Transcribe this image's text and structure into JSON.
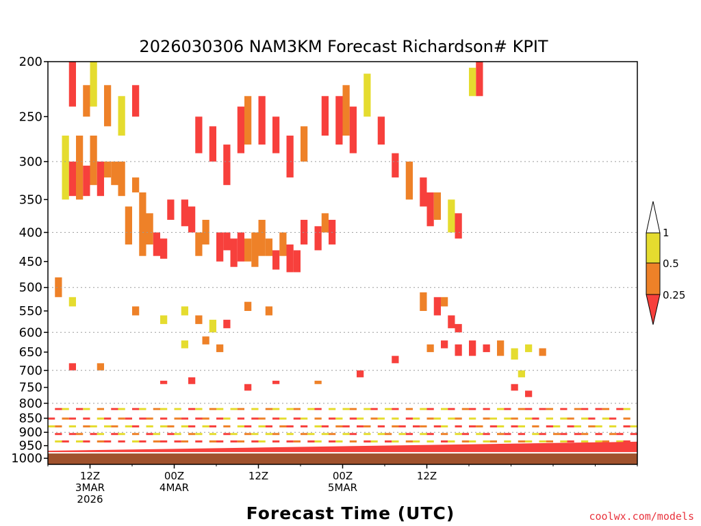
{
  "chart_data": {
    "type": "heatmap",
    "title": "2026030306 NAM3KM Forecast Richardson# KPIT",
    "xlabel": "Forecast Time (UTC)",
    "credit": "coolwx.com/models",
    "y_axis": {
      "scale": "log",
      "inverted": true,
      "range": [
        1025,
        200
      ],
      "ticks": [
        "200",
        "250",
        "300",
        "350",
        "400",
        "450",
        "500",
        "550",
        "600",
        "650",
        "700",
        "750",
        "800",
        "850",
        "900",
        "950",
        "1000"
      ],
      "gridlines_dotted": true
    },
    "x_axis": {
      "range_hours": [
        6,
        90
      ],
      "ticks": [
        {
          "hour": 12,
          "lines": [
            "12Z",
            "3MAR",
            "2026"
          ]
        },
        {
          "hour": 24,
          "lines": [
            "00Z",
            "4MAR"
          ]
        },
        {
          "hour": 36,
          "lines": [
            "12Z"
          ]
        },
        {
          "hour": 48,
          "lines": [
            "00Z",
            "5MAR"
          ]
        },
        {
          "hour": 60,
          "lines": [
            "12Z"
          ]
        }
      ]
    },
    "colorbar": {
      "levels": [
        "1",
        "0.5",
        "0.25"
      ],
      "bins": [
        {
          "range": "> 1",
          "color": "#ffffff"
        },
        {
          "range": "0.5 - 1",
          "color": "#e5dc2f"
        },
        {
          "range": "0.25 - 0.5",
          "color": "#ee8128"
        },
        {
          "range": "< 0.25",
          "color": "#f7403c"
        }
      ]
    },
    "ground_color": "#a0522d",
    "surface_layer": {
      "color": "#f7403c",
      "top_hpa_start": 970,
      "top_hpa_end": 935
    },
    "cells": [
      {
        "h": 8,
        "p0": 350,
        "p1": 270,
        "c": "y"
      },
      {
        "h": 10,
        "p0": 350,
        "p1": 270,
        "c": "o"
      },
      {
        "h": 12,
        "p0": 330,
        "p1": 270,
        "c": "o"
      },
      {
        "h": 14,
        "p0": 320,
        "p1": 300,
        "c": "o"
      },
      {
        "h": 9,
        "p0": 345,
        "p1": 300,
        "c": "r"
      },
      {
        "h": 11,
        "p0": 345,
        "p1": 305,
        "c": "r"
      },
      {
        "h": 13,
        "p0": 345,
        "p1": 300,
        "c": "r"
      },
      {
        "h": 15,
        "p0": 330,
        "p1": 300,
        "c": "o"
      },
      {
        "h": 16,
        "p0": 345,
        "p1": 300,
        "c": "o"
      },
      {
        "h": 18,
        "p0": 340,
        "p1": 320,
        "c": "o"
      },
      {
        "h": 17,
        "p0": 420,
        "p1": 360,
        "c": "o"
      },
      {
        "h": 19,
        "p0": 440,
        "p1": 340,
        "c": "o"
      },
      {
        "h": 20,
        "p0": 420,
        "p1": 370,
        "c": "o"
      },
      {
        "h": 21,
        "p0": 440,
        "p1": 400,
        "c": "r"
      },
      {
        "h": 22,
        "p0": 445,
        "p1": 410,
        "c": "r"
      },
      {
        "h": 23,
        "p0": 380,
        "p1": 350,
        "c": "r"
      },
      {
        "h": 25,
        "p0": 390,
        "p1": 350,
        "c": "r"
      },
      {
        "h": 26,
        "p0": 400,
        "p1": 360,
        "c": "r"
      },
      {
        "h": 27,
        "p0": 440,
        "p1": 400,
        "c": "o"
      },
      {
        "h": 28,
        "p0": 420,
        "p1": 380,
        "c": "o"
      },
      {
        "h": 30,
        "p0": 450,
        "p1": 400,
        "c": "r"
      },
      {
        "h": 31,
        "p0": 430,
        "p1": 400,
        "c": "r"
      },
      {
        "h": 32,
        "p0": 460,
        "p1": 410,
        "c": "r"
      },
      {
        "h": 33,
        "p0": 450,
        "p1": 400,
        "c": "r"
      },
      {
        "h": 34,
        "p0": 450,
        "p1": 410,
        "c": "o"
      },
      {
        "h": 35,
        "p0": 460,
        "p1": 400,
        "c": "o"
      },
      {
        "h": 36,
        "p0": 440,
        "p1": 380,
        "c": "o"
      },
      {
        "h": 37,
        "p0": 440,
        "p1": 410,
        "c": "o"
      },
      {
        "h": 38,
        "p0": 465,
        "p1": 430,
        "c": "r"
      },
      {
        "h": 39,
        "p0": 440,
        "p1": 400,
        "c": "o"
      },
      {
        "h": 40,
        "p0": 470,
        "p1": 420,
        "c": "r"
      },
      {
        "h": 41,
        "p0": 470,
        "p1": 430,
        "c": "r"
      },
      {
        "h": 42,
        "p0": 420,
        "p1": 380,
        "c": "r"
      },
      {
        "h": 44,
        "p0": 430,
        "p1": 390,
        "c": "r"
      },
      {
        "h": 45,
        "p0": 400,
        "p1": 370,
        "c": "o"
      },
      {
        "h": 46,
        "p0": 420,
        "p1": 380,
        "c": "r"
      },
      {
        "h": 27,
        "p0": 290,
        "p1": 250,
        "c": "r"
      },
      {
        "h": 29,
        "p0": 300,
        "p1": 260,
        "c": "r"
      },
      {
        "h": 31,
        "p0": 330,
        "p1": 280,
        "c": "r"
      },
      {
        "h": 33,
        "p0": 290,
        "p1": 240,
        "c": "r"
      },
      {
        "h": 34,
        "p0": 280,
        "p1": 230,
        "c": "o"
      },
      {
        "h": 36,
        "p0": 280,
        "p1": 230,
        "c": "r"
      },
      {
        "h": 38,
        "p0": 290,
        "p1": 250,
        "c": "r"
      },
      {
        "h": 40,
        "p0": 320,
        "p1": 270,
        "c": "r"
      },
      {
        "h": 42,
        "p0": 300,
        "p1": 260,
        "c": "o"
      },
      {
        "h": 45,
        "p0": 270,
        "p1": 230,
        "c": "r"
      },
      {
        "h": 47,
        "p0": 280,
        "p1": 230,
        "c": "r"
      },
      {
        "h": 48,
        "p0": 270,
        "p1": 220,
        "c": "o"
      },
      {
        "h": 49,
        "p0": 290,
        "p1": 240,
        "c": "r"
      },
      {
        "h": 51,
        "p0": 250,
        "p1": 210,
        "c": "y"
      },
      {
        "h": 53,
        "p0": 280,
        "p1": 250,
        "c": "r"
      },
      {
        "h": 55,
        "p0": 320,
        "p1": 290,
        "c": "r"
      },
      {
        "h": 57,
        "p0": 350,
        "p1": 300,
        "c": "o"
      },
      {
        "h": 59,
        "p0": 360,
        "p1": 320,
        "c": "r"
      },
      {
        "h": 60,
        "p0": 390,
        "p1": 340,
        "c": "r"
      },
      {
        "h": 61,
        "p0": 380,
        "p1": 340,
        "c": "o"
      },
      {
        "h": 63,
        "p0": 400,
        "p1": 350,
        "c": "y"
      },
      {
        "h": 64,
        "p0": 410,
        "p1": 370,
        "c": "r"
      },
      {
        "h": 67,
        "p0": 230,
        "p1": 200,
        "c": "r"
      },
      {
        "h": 66,
        "p0": 230,
        "p1": 205,
        "c": "y"
      },
      {
        "h": 9,
        "p0": 240,
        "p1": 200,
        "c": "r"
      },
      {
        "h": 12,
        "p0": 240,
        "p1": 200,
        "c": "y"
      },
      {
        "h": 14,
        "p0": 260,
        "p1": 220,
        "c": "o"
      },
      {
        "h": 16,
        "p0": 270,
        "p1": 230,
        "c": "y"
      },
      {
        "h": 18,
        "p0": 250,
        "p1": 220,
        "c": "r"
      },
      {
        "h": 11,
        "p0": 250,
        "p1": 220,
        "c": "o"
      },
      {
        "h": 7,
        "p0": 520,
        "p1": 480,
        "c": "o"
      },
      {
        "h": 9,
        "p0": 540,
        "p1": 520,
        "c": "y"
      },
      {
        "h": 18,
        "p0": 560,
        "p1": 540,
        "c": "o"
      },
      {
        "h": 22,
        "p0": 580,
        "p1": 560,
        "c": "y"
      },
      {
        "h": 25,
        "p0": 560,
        "p1": 540,
        "c": "y"
      },
      {
        "h": 27,
        "p0": 580,
        "p1": 560,
        "c": "o"
      },
      {
        "h": 29,
        "p0": 600,
        "p1": 570,
        "c": "y"
      },
      {
        "h": 31,
        "p0": 590,
        "p1": 570,
        "c": "r"
      },
      {
        "h": 34,
        "p0": 550,
        "p1": 530,
        "c": "o"
      },
      {
        "h": 37,
        "p0": 560,
        "p1": 540,
        "c": "o"
      },
      {
        "h": 30,
        "p0": 650,
        "p1": 630,
        "c": "o"
      },
      {
        "h": 28,
        "p0": 630,
        "p1": 610,
        "c": "o"
      },
      {
        "h": 25,
        "p0": 640,
        "p1": 620,
        "c": "y"
      },
      {
        "h": 59,
        "p0": 550,
        "p1": 510,
        "c": "o"
      },
      {
        "h": 61,
        "p0": 560,
        "p1": 520,
        "c": "r"
      },
      {
        "h": 62,
        "p0": 540,
        "p1": 520,
        "c": "o"
      },
      {
        "h": 63,
        "p0": 590,
        "p1": 560,
        "c": "r"
      },
      {
        "h": 64,
        "p0": 600,
        "p1": 580,
        "c": "r"
      },
      {
        "h": 60,
        "p0": 650,
        "p1": 630,
        "c": "o"
      },
      {
        "h": 62,
        "p0": 640,
        "p1": 620,
        "c": "r"
      },
      {
        "h": 64,
        "p0": 660,
        "p1": 630,
        "c": "r"
      },
      {
        "h": 66,
        "p0": 660,
        "p1": 620,
        "c": "r"
      },
      {
        "h": 68,
        "p0": 650,
        "p1": 630,
        "c": "r"
      },
      {
        "h": 70,
        "p0": 660,
        "p1": 620,
        "c": "o"
      },
      {
        "h": 72,
        "p0": 670,
        "p1": 640,
        "c": "y"
      },
      {
        "h": 74,
        "p0": 650,
        "p1": 630,
        "c": "y"
      },
      {
        "h": 73,
        "p0": 720,
        "p1": 700,
        "c": "y"
      },
      {
        "h": 76,
        "p0": 660,
        "p1": 640,
        "c": "o"
      },
      {
        "h": 50,
        "p0": 720,
        "p1": 700,
        "c": "r"
      },
      {
        "h": 55,
        "p0": 680,
        "p1": 660,
        "c": "r"
      },
      {
        "h": 13,
        "p0": 700,
        "p1": 680,
        "c": "o"
      },
      {
        "h": 9,
        "p0": 700,
        "p1": 680,
        "c": "r"
      },
      {
        "h": 22,
        "p0": 740,
        "p1": 730,
        "c": "r"
      },
      {
        "h": 26,
        "p0": 740,
        "p1": 720,
        "c": "r"
      },
      {
        "h": 34,
        "p0": 760,
        "p1": 740,
        "c": "r"
      },
      {
        "h": 38,
        "p0": 740,
        "p1": 730,
        "c": "r"
      },
      {
        "h": 44,
        "p0": 740,
        "p1": 730,
        "c": "o"
      },
      {
        "h": 72,
        "p0": 760,
        "p1": 740,
        "c": "r"
      },
      {
        "h": 74,
        "p0": 780,
        "p1": 760,
        "c": "r"
      }
    ],
    "low_bands": [
      {
        "h0": 6,
        "h1": 90,
        "p": 820,
        "c": "mix"
      },
      {
        "h0": 6,
        "h1": 90,
        "p": 850,
        "c": "mix"
      },
      {
        "h0": 6,
        "h1": 90,
        "p": 875,
        "c": "mix"
      },
      {
        "h0": 6,
        "h1": 90,
        "p": 900,
        "c": "mix"
      },
      {
        "h0": 6,
        "h1": 90,
        "p": 925,
        "c": "mix"
      }
    ]
  }
}
